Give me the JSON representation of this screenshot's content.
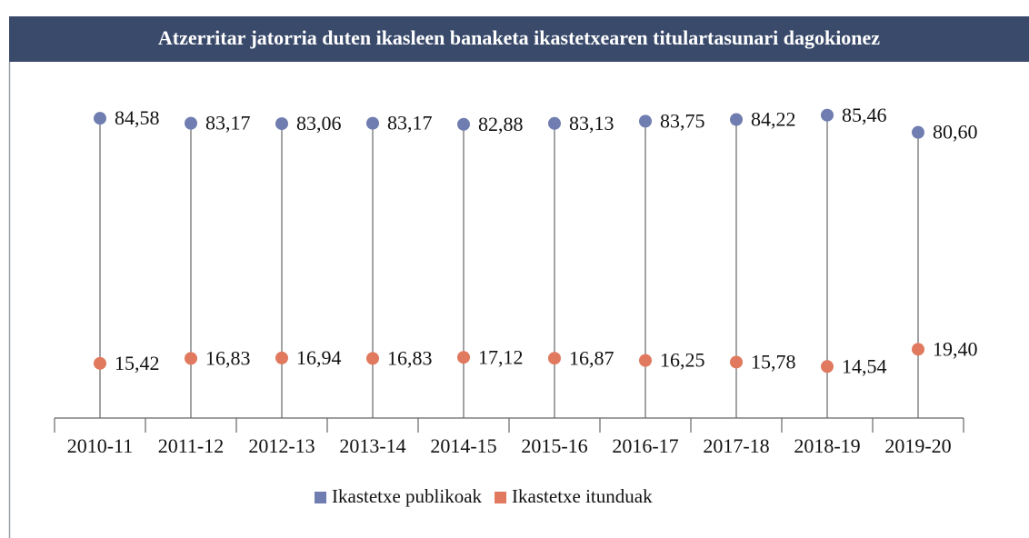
{
  "chart_data": {
    "type": "lollipop",
    "title": "Atzerritar jatorria duten ikasleen banaketa ikastetxearen titulartasunari dagokionez",
    "categories": [
      "2010-11",
      "2011-12",
      "2012-13",
      "2013-14",
      "2014-15",
      "2015-16",
      "2016-17",
      "2017-18",
      "2018-19",
      "2019-20"
    ],
    "series": [
      {
        "name": "Ikastetxe publikoak",
        "color": "#6f7db0",
        "values": [
          84.58,
          83.17,
          83.06,
          83.17,
          82.88,
          83.13,
          83.75,
          84.22,
          85.46,
          80.6
        ],
        "value_labels": [
          "84,58",
          "83,17",
          "83,06",
          "83,17",
          "82,88",
          "83,13",
          "83,75",
          "84,22",
          "85,46",
          "80,60"
        ]
      },
      {
        "name": "Ikastetxe itunduak",
        "color": "#e0795d",
        "values": [
          15.42,
          16.83,
          16.94,
          16.83,
          17.12,
          16.87,
          16.25,
          15.78,
          14.54,
          19.4
        ],
        "value_labels": [
          "15,42",
          "16,83",
          "16,94",
          "16,83",
          "17,12",
          "16,87",
          "16,25",
          "15,78",
          "14,54",
          "19,40"
        ]
      }
    ],
    "ylim": [
      0,
      100
    ]
  }
}
